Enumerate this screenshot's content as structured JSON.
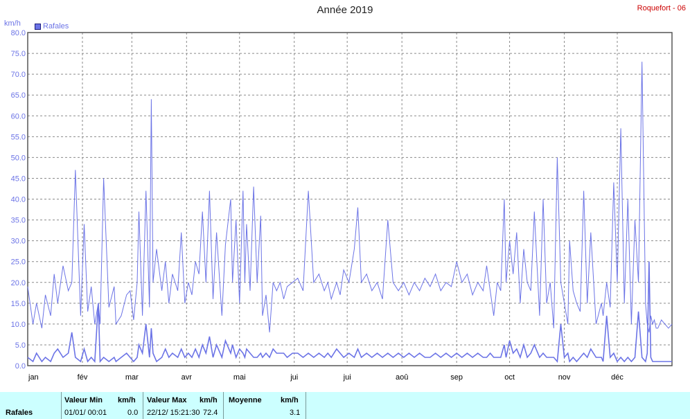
{
  "title": "Année 2019",
  "station": "Roquefort - 06",
  "unit": "km/h",
  "colors": {
    "series": "#6b73e6",
    "grid": "#8a8a8a",
    "axis": "#6b73e6",
    "stats_bg": "#ccffff"
  },
  "chart_data": {
    "type": "line",
    "title": "Année 2019",
    "ylabel": "km/h",
    "ylim": [
      0,
      80
    ],
    "yticks": [
      "0.0",
      "5.0",
      "10.0",
      "15.0",
      "20.0",
      "25.0",
      "30.0",
      "35.0",
      "40.0",
      "45.0",
      "50.0",
      "55.0",
      "60.0",
      "65.0",
      "70.0",
      "75.0",
      "80.0"
    ],
    "xlim": [
      0,
      365
    ],
    "month_labels": [
      "jan",
      "fév",
      "mar",
      "avr",
      "mai",
      "jui",
      "jui",
      "aoû",
      "sep",
      "oct",
      "nov",
      "déc"
    ],
    "month_starts": [
      0,
      31,
      59,
      90,
      120,
      151,
      181,
      212,
      243,
      273,
      304,
      334
    ],
    "grid": true,
    "legend": "top-left",
    "series": [
      {
        "name": "Rafales",
        "x": [
          0,
          3,
          5,
          8,
          10,
          13,
          15,
          17,
          20,
          23,
          25,
          27,
          30,
          32,
          34,
          36,
          38,
          40,
          41,
          43,
          46,
          49,
          50,
          53,
          56,
          58,
          60,
          62,
          63,
          65,
          67,
          69,
          70,
          71,
          73,
          76,
          78,
          80,
          82,
          85,
          87,
          89,
          91,
          93,
          95,
          97,
          99,
          101,
          103,
          105,
          107,
          110,
          112,
          115,
          116,
          118,
          120,
          122,
          123,
          124,
          126,
          128,
          130,
          132,
          133,
          135,
          137,
          139,
          141,
          143,
          145,
          147,
          150,
          153,
          156,
          159,
          162,
          165,
          168,
          170,
          172,
          175,
          177,
          179,
          182,
          185,
          187,
          189,
          192,
          195,
          198,
          201,
          204,
          207,
          210,
          213,
          216,
          219,
          222,
          225,
          228,
          231,
          234,
          237,
          240,
          243,
          246,
          249,
          252,
          255,
          258,
          260,
          262,
          264,
          266,
          268,
          270,
          271,
          273,
          275,
          277,
          279,
          281,
          283,
          285,
          287,
          290,
          292,
          294,
          296,
          298,
          300,
          302,
          304,
          306,
          307,
          309,
          311,
          313,
          315,
          317,
          319,
          322,
          325,
          326,
          328,
          330,
          332,
          334,
          336,
          338,
          340,
          342,
          344,
          346,
          348,
          350,
          351,
          352,
          353,
          354,
          355,
          356,
          357,
          358,
          359,
          361,
          363,
          365
        ],
        "values": [
          19,
          10,
          15,
          9,
          17,
          12,
          22,
          15,
          24,
          18,
          20,
          47,
          12,
          34,
          13,
          19,
          10,
          15,
          10,
          45,
          14,
          19,
          10,
          12,
          17,
          18,
          11,
          20,
          37,
          12,
          42,
          14,
          64,
          20,
          28,
          18,
          25,
          15,
          22,
          18,
          32,
          15,
          20,
          17,
          25,
          22,
          37,
          20,
          42,
          16,
          32,
          12,
          29,
          40,
          20,
          35,
          15,
          42,
          20,
          34,
          18,
          43,
          20,
          36,
          12,
          17,
          8,
          20,
          18,
          20,
          16,
          19,
          20,
          21,
          18,
          42,
          20,
          22,
          18,
          20,
          16,
          20,
          17,
          23,
          20,
          28,
          38,
          20,
          22,
          18,
          20,
          16,
          35,
          20,
          18,
          20,
          17,
          20,
          18,
          21,
          19,
          22,
          18,
          20,
          19,
          25,
          20,
          22,
          17,
          20,
          18,
          24,
          18,
          12,
          20,
          18,
          40,
          20,
          30,
          22,
          32,
          15,
          28,
          20,
          18,
          37,
          12,
          40,
          15,
          20,
          9,
          50,
          20,
          15,
          10,
          30,
          18,
          15,
          13,
          42,
          15,
          32,
          10,
          15,
          12,
          20,
          14,
          44,
          20,
          57,
          15,
          40,
          10,
          35,
          20,
          73,
          15,
          10,
          8,
          12,
          10,
          11,
          9,
          9,
          10,
          11,
          10,
          9,
          10
        ],
        "lower_envelope": [
          2,
          1,
          3,
          1,
          2,
          1,
          3,
          4,
          2,
          3,
          8,
          2,
          1,
          4,
          1,
          2,
          1,
          15,
          1,
          2,
          1,
          2,
          1,
          2,
          3,
          2,
          1,
          2,
          5,
          3,
          10,
          2,
          9,
          3,
          1,
          2,
          4,
          2,
          3,
          2,
          4,
          2,
          3,
          2,
          4,
          2,
          5,
          3,
          7,
          2,
          5,
          2,
          6,
          3,
          5,
          2,
          4,
          3,
          2,
          4,
          3,
          2,
          2,
          3,
          2,
          3,
          2,
          4,
          3,
          3,
          3,
          2,
          3,
          3,
          2,
          3,
          2,
          3,
          2,
          3,
          2,
          4,
          3,
          2,
          3,
          2,
          4,
          2,
          3,
          2,
          3,
          2,
          3,
          2,
          3,
          2,
          3,
          2,
          3,
          2,
          2,
          3,
          2,
          3,
          2,
          3,
          2,
          3,
          2,
          3,
          2,
          2,
          3,
          2,
          2,
          2,
          5,
          2,
          6,
          3,
          4,
          2,
          5,
          2,
          3,
          5,
          2,
          3,
          2,
          2,
          2,
          1,
          10,
          2,
          3,
          1,
          2,
          1,
          2,
          3,
          2,
          4,
          2,
          2,
          1,
          12,
          2,
          3,
          1,
          2,
          1,
          2,
          1,
          2,
          13,
          2,
          1,
          3,
          25,
          2,
          1,
          1,
          1,
          1,
          1,
          1,
          1,
          1,
          1,
          1,
          1
        ]
      }
    ]
  },
  "stats": {
    "series_label": "Rafales",
    "min_header": "Valeur Min",
    "min_unit": "km/h",
    "min_time": "01/01/ 00:01",
    "min_value": "0.0",
    "max_header": "Valeur Max",
    "max_unit": "km/h",
    "max_time": "22/12/ 15:21:30",
    "max_value": "72.4",
    "avg_header": "Moyenne",
    "avg_unit": "km/h",
    "avg_value": "3.1"
  }
}
